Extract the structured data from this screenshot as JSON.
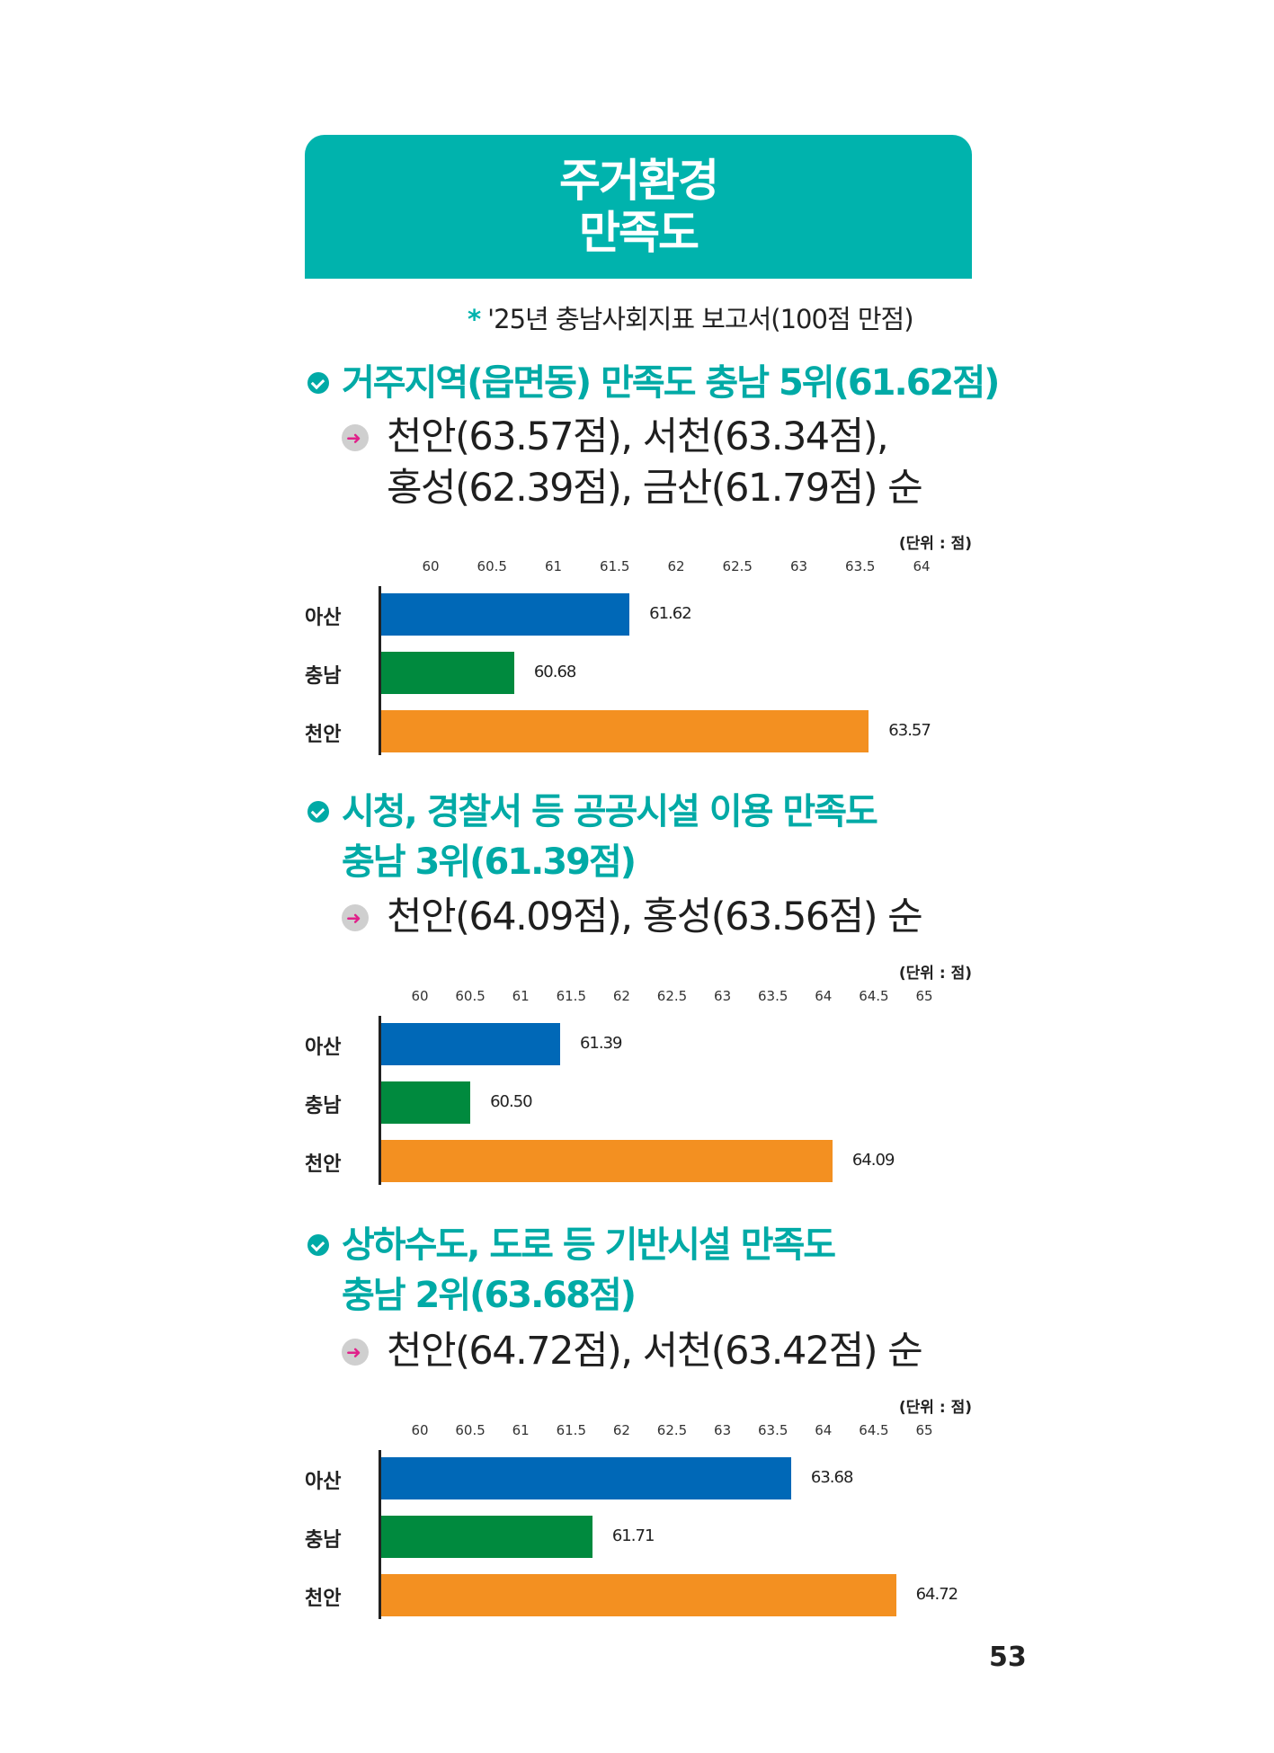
{
  "title": {
    "line1": "주거환경",
    "line2": "만족도"
  },
  "source": {
    "marker": "*",
    "text": "'25년 충남사회지표 보고서(100점 만점)"
  },
  "sections": [
    {
      "heading": [
        "거주지역(읍면동) 만족도 충남 5위(61.62점)"
      ],
      "sub": [
        "천안(63.57점), 서천(63.34점),",
        "홍성(62.39점), 금산(61.79점) 순"
      ]
    },
    {
      "heading": [
        "시청, 경찰서 등 공공시설 이용 만족도",
        "충남 3위(61.39점)"
      ],
      "sub": [
        "천안(64.09점), 홍성(63.56점) 순"
      ]
    },
    {
      "heading": [
        "상하수도, 도로 등 기반시설 만족도",
        "충남 2위(63.68점)"
      ],
      "sub": [
        "천안(64.72점), 서천(63.42점) 순"
      ]
    }
  ],
  "colors": {
    "accent": "#00b3ad",
    "asan": "#0068b7",
    "chungnam": "#008a3e",
    "cheonan": "#f39021"
  },
  "chart_data": [
    {
      "type": "bar",
      "orientation": "horizontal",
      "unit": "(단위 : 점)",
      "categories": [
        "아산",
        "충남",
        "천안"
      ],
      "values": [
        61.62,
        60.68,
        63.57
      ],
      "value_labels": [
        "61.62",
        "60.68",
        "63.57"
      ],
      "xlim": [
        60,
        64
      ],
      "ticks": [
        "60",
        "60.5",
        "61",
        "61.5",
        "62",
        "62.5",
        "63",
        "63.5",
        "64"
      ]
    },
    {
      "type": "bar",
      "orientation": "horizontal",
      "unit": "(단위 : 점)",
      "categories": [
        "아산",
        "충남",
        "천안"
      ],
      "values": [
        61.39,
        60.5,
        64.09
      ],
      "value_labels": [
        "61.39",
        "60.50",
        "64.09"
      ],
      "xlim": [
        60,
        65
      ],
      "ticks": [
        "60",
        "60.5",
        "61",
        "61.5",
        "62",
        "62.5",
        "63",
        "63.5",
        "64",
        "64.5",
        "65"
      ]
    },
    {
      "type": "bar",
      "orientation": "horizontal",
      "unit": "(단위 : 점)",
      "categories": [
        "아산",
        "충남",
        "천안"
      ],
      "values": [
        63.68,
        61.71,
        64.72
      ],
      "value_labels": [
        "63.68",
        "61.71",
        "64.72"
      ],
      "xlim": [
        60,
        65
      ],
      "ticks": [
        "60",
        "60.5",
        "61",
        "61.5",
        "62",
        "62.5",
        "63",
        "63.5",
        "64",
        "64.5",
        "65"
      ]
    }
  ],
  "page_number": "53"
}
